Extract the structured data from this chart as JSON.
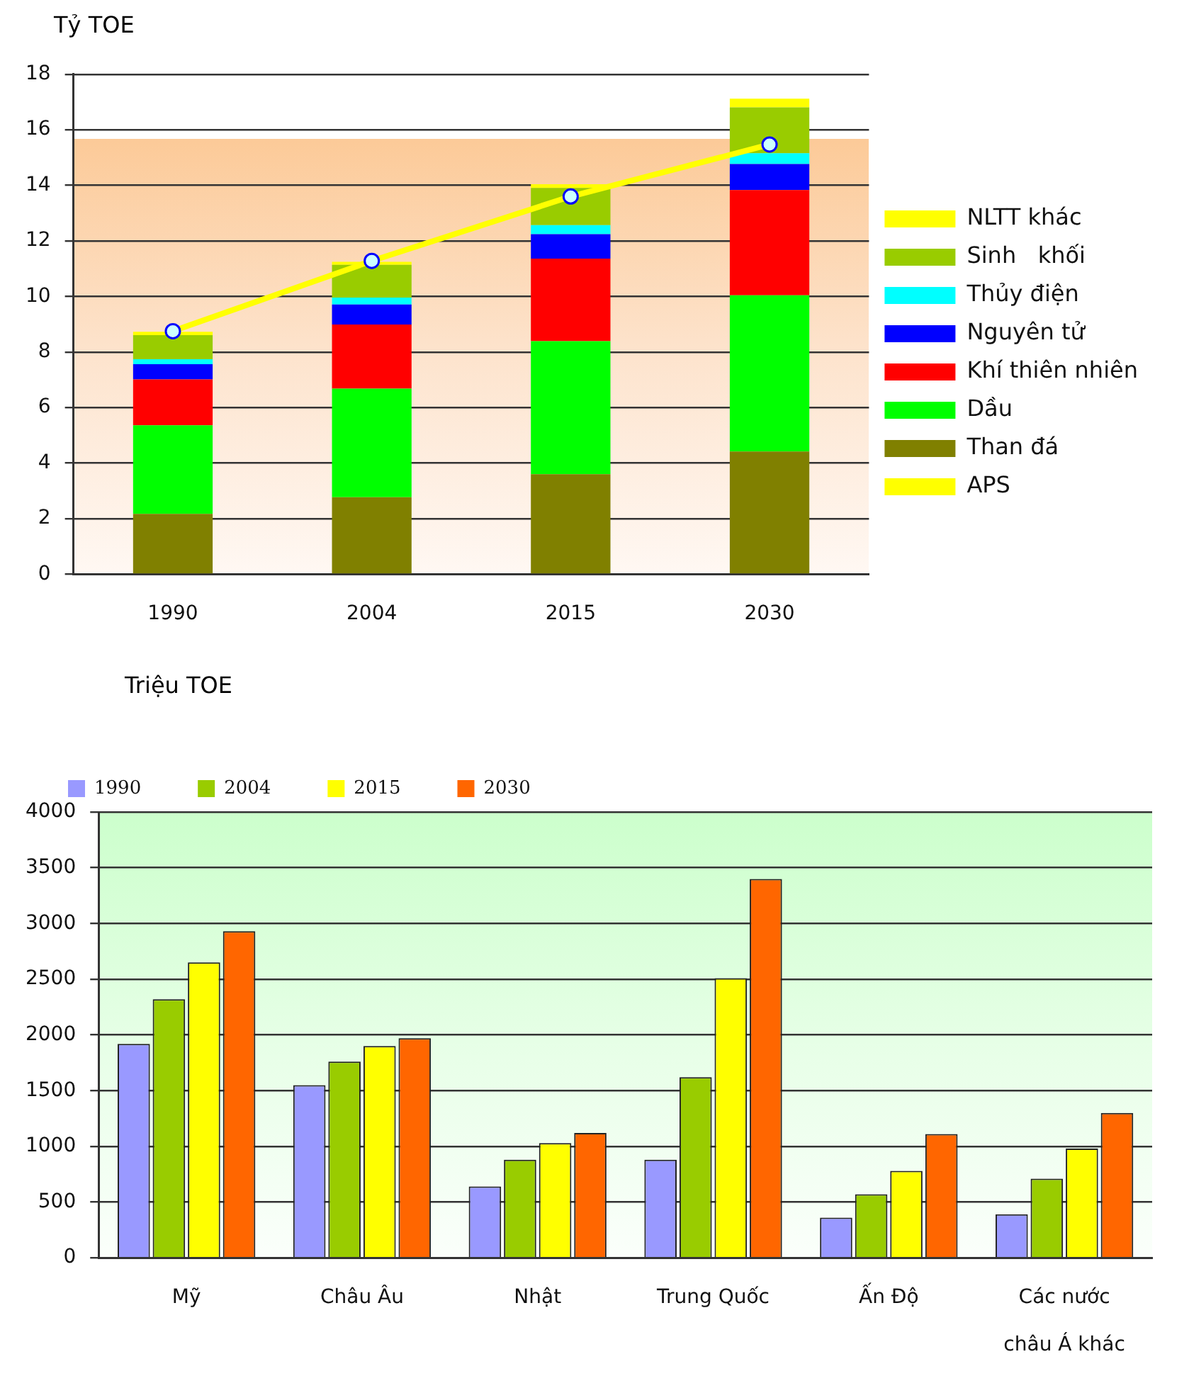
{
  "chart_data": [
    {
      "type": "bar",
      "ylabel": "Tỷ TOE",
      "categories": [
        "1990",
        "2004",
        "2015",
        "2030"
      ],
      "stacked": true,
      "series": [
        {
          "name": "Than đá",
          "color": "#808000",
          "values": [
            2.17,
            2.77,
            3.6,
            4.42
          ]
        },
        {
          "name": "Dầu",
          "color": "#00ff00",
          "values": [
            3.19,
            3.91,
            4.79,
            5.62
          ]
        },
        {
          "name": "Khí thiên nhiên",
          "color": "#ff0000",
          "values": [
            1.65,
            2.31,
            2.97,
            3.79
          ]
        },
        {
          "name": "Nguyên tử",
          "color": "#0000ff",
          "values": [
            0.55,
            0.72,
            0.88,
            0.94
          ]
        },
        {
          "name": "Thủy điện",
          "color": "#00ffff",
          "values": [
            0.18,
            0.25,
            0.33,
            0.39
          ]
        },
        {
          "name": "Sinh   khối",
          "color": "#99cc00",
          "values": [
            0.87,
            1.18,
            1.34,
            1.65
          ]
        },
        {
          "name": "NLTT khác",
          "color": "#ffff00",
          "values": [
            0.12,
            0.11,
            0.13,
            0.31
          ]
        },
        {
          "name": "APS",
          "type": "line",
          "color": "#ffff00",
          "marker": "circle",
          "values": [
            8.75,
            11.28,
            13.6,
            15.47
          ]
        }
      ],
      "ylim": [
        0,
        18
      ],
      "yticks": [
        0,
        2,
        4,
        6,
        8,
        10,
        12,
        14,
        16,
        18
      ],
      "grid": "y",
      "legend": "right"
    },
    {
      "type": "bar",
      "ylabel": "Triệu TOE",
      "categories": [
        "Mỹ",
        "Châu Âu",
        "Nhật",
        "Trung Quốc",
        "Ấn Độ",
        "Các nước\n\nchâu Á khác"
      ],
      "series": [
        {
          "name": "1990",
          "color": "#9999ff",
          "values": [
            1920,
            1550,
            640,
            880,
            360,
            390
          ]
        },
        {
          "name": "2004",
          "color": "#99cc00",
          "values": [
            2320,
            1760,
            880,
            1620,
            570,
            710
          ]
        },
        {
          "name": "2015",
          "color": "#ffff00",
          "values": [
            2650,
            1900,
            1030,
            2510,
            780,
            980
          ]
        },
        {
          "name": "2030",
          "color": "#ff6600",
          "values": [
            2930,
            1970,
            1120,
            3400,
            1110,
            1300
          ]
        }
      ],
      "ylim": [
        0,
        4000
      ],
      "yticks": [
        0,
        500,
        1000,
        1500,
        2000,
        2500,
        3000,
        3500,
        4000
      ],
      "grid": "y",
      "legend": "top"
    }
  ]
}
